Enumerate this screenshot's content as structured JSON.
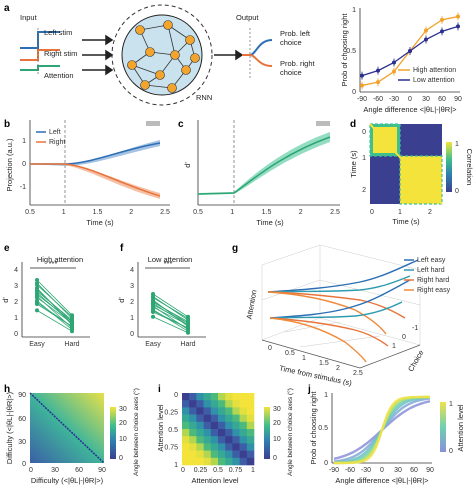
{
  "colors": {
    "blue": "#2c6fb5",
    "orange": "#e8743b",
    "green": "#2ea673",
    "navy": "#2b2f8f",
    "gold": "#f2a22b",
    "rnn": "#c9e2ee",
    "node": "#f2a42c",
    "teal": "#3fbfa0"
  },
  "panel_a": {
    "letter": "a",
    "input_label": "Input",
    "left_stim": "Left stim",
    "right_stim": "Right stim",
    "attention": "Attention",
    "rnn_label": "RNN",
    "output_label": "Output",
    "prob_left": "Prob. left",
    "prob_left2": "choice",
    "prob_right": "Prob. right",
    "prob_right2": "choice",
    "ylabel": "Prob of choosing right",
    "xlabel": "Angle difference <|θL|-|θR|>",
    "legend_high": "High attention",
    "legend_low": "Low attention",
    "xticks": [
      "-90",
      "-60",
      "-30",
      "0",
      "30",
      "60",
      "90"
    ],
    "yticks": [
      "0",
      "0.5",
      "1"
    ]
  },
  "panel_b": {
    "letter": "b",
    "legend_left": "Left",
    "legend_right": "Right",
    "ylabel": "Projection (a.u.)",
    "xlabel": "Time (s)",
    "xticks": [
      "0.5",
      "1",
      "1.5",
      "2",
      "2.5"
    ],
    "yticks": [
      "1",
      "0",
      "-1"
    ]
  },
  "panel_c": {
    "letter": "c",
    "ylabel": "d'",
    "xlabel": "Time (s)",
    "xticks": [
      "0.5",
      "1",
      "1.5",
      "2",
      "2.5"
    ]
  },
  "panel_d": {
    "letter": "d",
    "ylabel": "Time (s)",
    "xlabel": "Time (s)",
    "xticks": [
      "0",
      "1",
      "2"
    ],
    "yticks": [
      "0",
      "1",
      "2"
    ],
    "cbar_label": "Correlation",
    "cbar_ticks": [
      "1",
      "0"
    ]
  },
  "panel_e": {
    "letter": "e",
    "title": "High attention",
    "sig": "***",
    "ylabel": "d'",
    "xticks": [
      "Easy",
      "Hard"
    ],
    "yticks": [
      "4",
      "3",
      "2",
      "1",
      "0"
    ]
  },
  "panel_f": {
    "letter": "f",
    "title": "Low attention",
    "sig": "***",
    "ylabel": "d'",
    "xticks": [
      "Easy",
      "Hard"
    ],
    "yticks": [
      "4",
      "3",
      "2",
      "1",
      "0"
    ]
  },
  "panel_g": {
    "letter": "g",
    "legend": [
      "Left easy",
      "Left hard",
      "Right hard",
      "Right easy"
    ],
    "z_label": "Attention",
    "x_label": "Time from stimulus (s)",
    "y_label": "Choice",
    "xticks": [
      "0",
      "0.5",
      "1",
      "1.5",
      "2",
      "2.5"
    ],
    "yticks": [
      "1",
      "0",
      "-1"
    ]
  },
  "panel_h": {
    "letter": "h",
    "ylabel": "Difficulty (<|θL|-|θR|>)",
    "xlabel": "Difficulty (<|θL|-|θR|>)",
    "xticks": [
      "0",
      "30",
      "60",
      "90"
    ],
    "yticks": [
      "90",
      "60",
      "30",
      "0"
    ],
    "cbar_label": "Angle between choice axes (°)",
    "cbar_ticks": [
      "30",
      "20",
      "10",
      "0"
    ]
  },
  "panel_i": {
    "letter": "i",
    "ylabel": "Attention level",
    "xlabel": "Attention level",
    "xticks": [
      "0",
      "0.25",
      "0.5",
      "0.75",
      "1"
    ],
    "yticks": [
      "0",
      "0.25",
      "0.5",
      "0.75",
      "1"
    ],
    "cbar_label": "Angle between choice axes (°)",
    "cbar_ticks": [
      "30",
      "20",
      "10",
      "0"
    ]
  },
  "panel_j": {
    "letter": "j",
    "ylabel": "Prob of choosing right",
    "xlabel": "Angle difference <|θL|-|θR|>",
    "xticks": [
      "-90",
      "-60",
      "-30",
      "0",
      "30",
      "60",
      "90"
    ],
    "yticks": [
      "0",
      "0.5",
      "1"
    ],
    "cbar_label": "Attention level",
    "cbar_ticks": [
      "1",
      "0"
    ]
  },
  "chart_data": [
    {
      "type": "line",
      "panel": "a",
      "x": [
        -90,
        -60,
        -30,
        0,
        30,
        60,
        90
      ],
      "series": [
        {
          "name": "High attention",
          "values": [
            0.08,
            0.12,
            0.25,
            0.5,
            0.75,
            0.88,
            0.92
          ]
        },
        {
          "name": "Low attention",
          "values": [
            0.2,
            0.26,
            0.36,
            0.5,
            0.64,
            0.74,
            0.8
          ]
        }
      ],
      "ylim": [
        0,
        1
      ]
    },
    {
      "type": "line",
      "panel": "b",
      "x": [
        0.5,
        1,
        1.5,
        2,
        2.5
      ],
      "series": [
        {
          "name": "Left",
          "values": [
            0,
            0,
            0.3,
            0.9,
            1.3
          ]
        },
        {
          "name": "Right",
          "values": [
            0,
            0,
            -0.4,
            -1.0,
            -1.35
          ]
        }
      ]
    },
    {
      "type": "line",
      "panel": "c",
      "x": [
        0.5,
        1,
        1.5,
        2,
        2.5
      ],
      "values": [
        0,
        0,
        1.8,
        3.4,
        4.3
      ]
    },
    {
      "type": "line",
      "panel": "j",
      "x": [
        -90,
        -60,
        -30,
        0,
        30,
        60,
        90
      ],
      "values": [
        0.04,
        0.1,
        0.28,
        0.5,
        0.72,
        0.9,
        0.96
      ]
    }
  ]
}
